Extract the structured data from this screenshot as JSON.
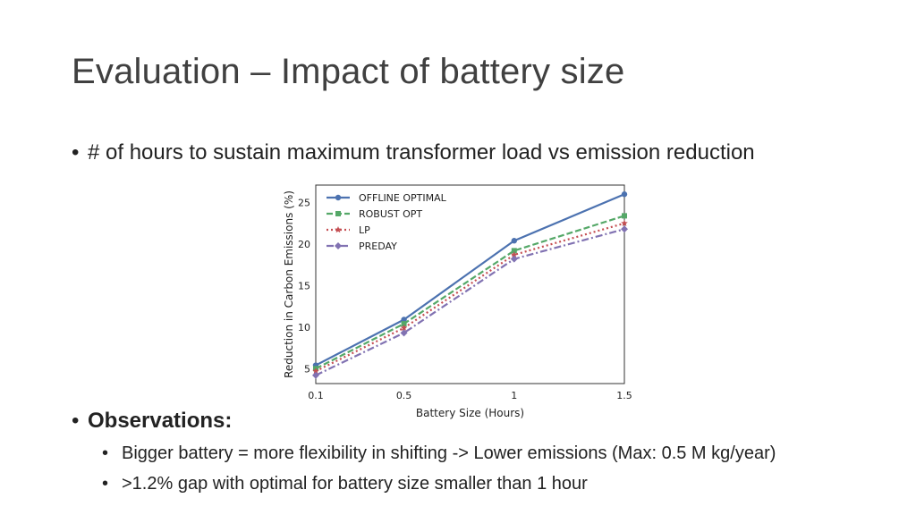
{
  "slide": {
    "title": "Evaluation – Impact of battery size",
    "bullets": {
      "intro": "# of hours to sustain maximum transformer load vs emission reduction",
      "observations_heading": "Observations:",
      "observations": [
        "Bigger battery = more flexibility in shifting -> Lower emissions (Max: 0.5 M kg/year)",
        ">1.2% gap with optimal for battery size smaller than 1 hour"
      ]
    }
  },
  "chart_data": {
    "type": "line",
    "xlabel": "Battery Size (Hours)",
    "ylabel": "Reduction in Carbon Emissions (%)",
    "x": [
      "0.1",
      "0.5",
      "1",
      "1.5"
    ],
    "yticks": [
      5,
      10,
      15,
      20,
      25
    ],
    "ylim": [
      3.2,
      27.1
    ],
    "legend_position": "top-left",
    "grid": false,
    "series": [
      {
        "name": "OFFLINE OPTIMAL",
        "values": [
          5.4,
          10.9,
          20.4,
          26.0
        ],
        "color": "#4c72b0",
        "dash": "solid",
        "marker": "circle"
      },
      {
        "name": "ROBUST OPT",
        "values": [
          5.0,
          10.4,
          19.2,
          23.4
        ],
        "color": "#55a868",
        "dash": "dashed",
        "marker": "square"
      },
      {
        "name": "LP",
        "values": [
          4.7,
          9.9,
          18.7,
          22.5
        ],
        "color": "#c44e52",
        "dash": "dotted",
        "marker": "star"
      },
      {
        "name": "PREDAY",
        "values": [
          4.2,
          9.3,
          18.2,
          21.8
        ],
        "color": "#8172b2",
        "dash": "dashdot",
        "marker": "diamond"
      }
    ]
  }
}
